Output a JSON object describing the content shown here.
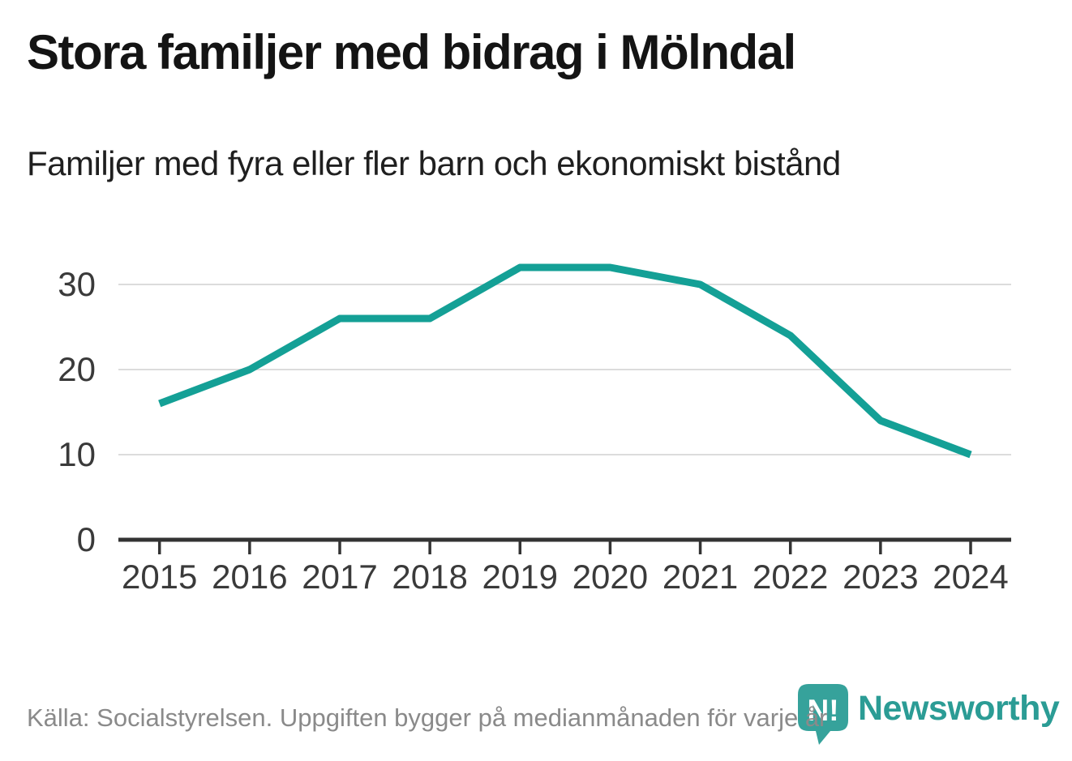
{
  "header": {
    "title": "Stora familjer med bidrag i Mölndal",
    "subtitle": "Familjer med fyra eller fler barn och ekonomiskt bistånd"
  },
  "chart_data": {
    "type": "line",
    "title": "Stora familjer med bidrag i Mölndal",
    "subtitle": "Familjer med fyra eller fler barn och ekonomiskt bistånd",
    "x": [
      2015,
      2016,
      2017,
      2018,
      2019,
      2020,
      2021,
      2022,
      2023,
      2024
    ],
    "series": [
      {
        "name": "Familjer med fyra eller fler barn och ekonomiskt bistånd",
        "values": [
          16,
          20,
          26,
          26,
          32,
          32,
          30,
          24,
          14,
          10
        ]
      }
    ],
    "xlabel": "",
    "ylabel": "",
    "yticks": [
      0,
      10,
      20,
      30
    ],
    "ylim": [
      0,
      34
    ],
    "grid": "horizontal",
    "legend": "none",
    "line_color": "#14a096",
    "axis_color": "#333333",
    "grid_color": "#dcdcdc",
    "label_color": "#3a3a3a"
  },
  "footer": {
    "source": "Källa: Socialstyrelsen. Uppgiften bygger på medianmånaden för varje år",
    "brand": "Newsworthy",
    "brand_badge": "N!",
    "brand_color": "#2b9c95",
    "badge_color": "#36a29b"
  }
}
